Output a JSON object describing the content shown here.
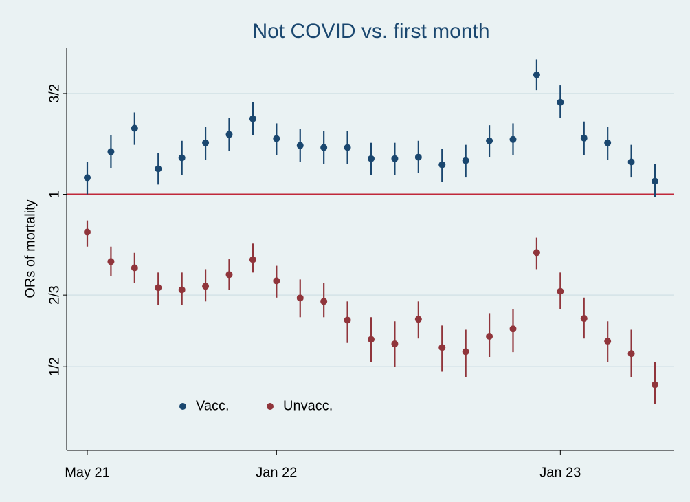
{
  "chart_data": {
    "type": "scatter",
    "title": "Not COVID vs. first month",
    "y_label": "ORs of mortality",
    "log_y": true,
    "x": [
      "2021-05",
      "2021-06",
      "2021-07",
      "2021-08",
      "2021-09",
      "2021-10",
      "2021-11",
      "2021-12",
      "2022-01",
      "2022-02",
      "2022-03",
      "2022-04",
      "2022-05",
      "2022-06",
      "2022-07",
      "2022-08",
      "2022-09",
      "2022-10",
      "2022-11",
      "2022-12",
      "2023-01",
      "2023-02",
      "2023-03",
      "2023-04",
      "2023-05"
    ],
    "xlim": [
      "2021-05",
      "2023-05"
    ],
    "xticks": [
      {
        "value": "2021-05",
        "label": "May 21"
      },
      {
        "value": "2022-01",
        "label": "Jan 22"
      },
      {
        "value": "2023-01",
        "label": "Jan 23"
      }
    ],
    "ylim": [
      0.357,
      1.8
    ],
    "yticks": [
      {
        "value": 0.5,
        "label": "1/2"
      },
      {
        "value": 0.6667,
        "label": "2/3"
      },
      1,
      {
        "value": 1.5,
        "label": "3/2"
      }
    ],
    "grid": true,
    "refline": {
      "value": 1,
      "color": "#c0283a"
    },
    "legend": "bottom-left",
    "series": [
      {
        "name": "Vacc.",
        "color": "#1a476f",
        "values": [
          1.069,
          1.187,
          1.304,
          1.108,
          1.158,
          1.23,
          1.272,
          1.355,
          1.251,
          1.217,
          1.207,
          1.207,
          1.154,
          1.154,
          1.161,
          1.126,
          1.145,
          1.24,
          1.247,
          1.617,
          1.448,
          1.254,
          1.23,
          1.139,
          1.054
        ],
        "ci_low": [
          1.0,
          1.11,
          1.22,
          1.04,
          1.08,
          1.15,
          1.19,
          1.27,
          1.17,
          1.14,
          1.13,
          1.13,
          1.08,
          1.08,
          1.09,
          1.05,
          1.07,
          1.16,
          1.17,
          1.52,
          1.36,
          1.17,
          1.15,
          1.07,
          0.99
        ],
        "ci_high": [
          1.14,
          1.27,
          1.39,
          1.18,
          1.24,
          1.31,
          1.36,
          1.45,
          1.33,
          1.3,
          1.29,
          1.29,
          1.23,
          1.23,
          1.24,
          1.2,
          1.22,
          1.32,
          1.33,
          1.72,
          1.55,
          1.34,
          1.31,
          1.22,
          1.13
        ]
      },
      {
        "name": "Unvacc.",
        "color": "#90353b",
        "values": [
          0.859,
          0.763,
          0.744,
          0.687,
          0.681,
          0.691,
          0.724,
          0.769,
          0.706,
          0.659,
          0.65,
          0.603,
          0.558,
          0.548,
          0.605,
          0.54,
          0.531,
          0.565,
          0.582,
          0.791,
          0.677,
          0.607,
          0.554,
          0.527,
          0.465
        ],
        "ci_low": [
          0.81,
          0.72,
          0.7,
          0.64,
          0.64,
          0.65,
          0.68,
          0.73,
          0.66,
          0.61,
          0.61,
          0.55,
          0.51,
          0.5,
          0.56,
          0.49,
          0.48,
          0.52,
          0.53,
          0.74,
          0.63,
          0.56,
          0.51,
          0.48,
          0.43
        ],
        "ci_high": [
          0.9,
          0.81,
          0.79,
          0.73,
          0.73,
          0.74,
          0.77,
          0.82,
          0.75,
          0.71,
          0.7,
          0.65,
          0.61,
          0.6,
          0.65,
          0.59,
          0.58,
          0.62,
          0.63,
          0.84,
          0.73,
          0.66,
          0.6,
          0.58,
          0.51
        ]
      }
    ]
  }
}
